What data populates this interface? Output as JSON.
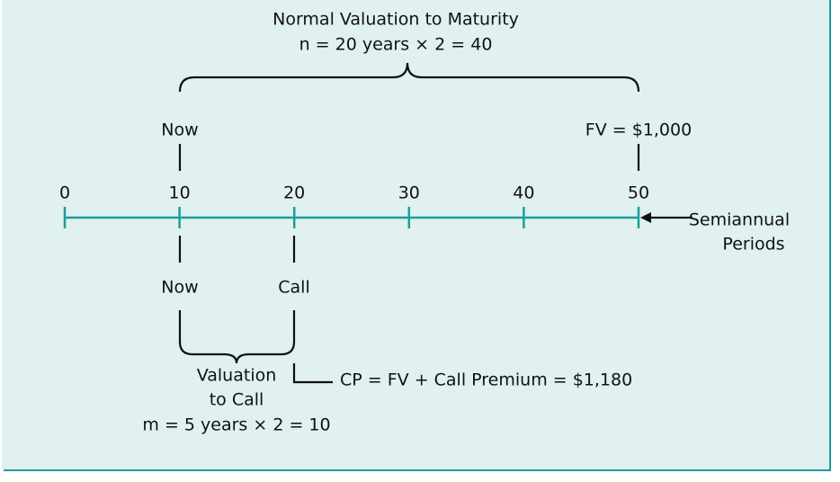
{
  "title": "Normal Valuation to Maturity",
  "maturity_formula": "n = 20 years × 2 = 40",
  "top_now": "Now",
  "face_value": "FV = $1,000",
  "axis": {
    "ticks": [
      0,
      10,
      20,
      30,
      40,
      50
    ],
    "label": [
      "Semiannual",
      "Periods"
    ]
  },
  "bottom_now": "Now",
  "call": "Call",
  "call_price": "CP = FV + Call Premium = $1,180",
  "call_valuation": [
    "Valuation",
    "to Call",
    "m = 5 years × 2 = 10"
  ]
}
